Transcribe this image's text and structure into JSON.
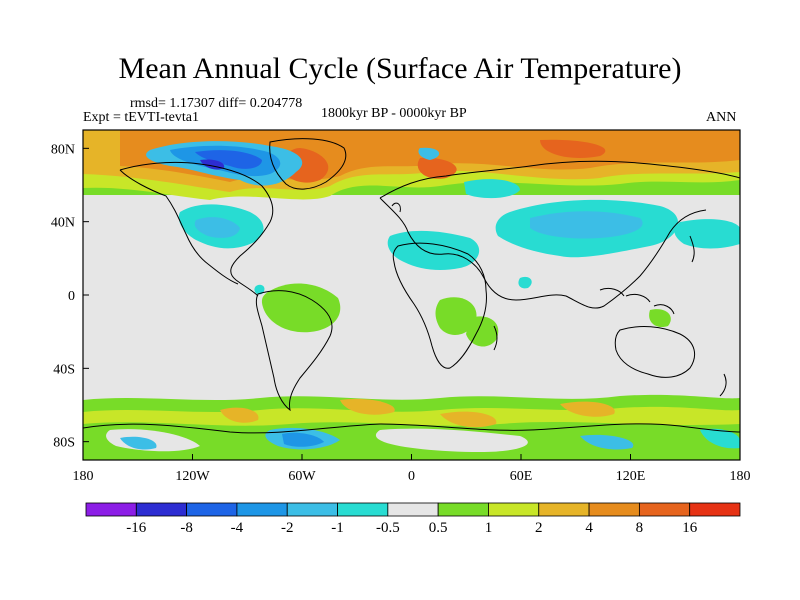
{
  "title": "Mean Annual Cycle (Surface Air Temperature)",
  "stats": "rmsd= 1.17307 diff= 0.204778",
  "experiment": "Expt = tEVTI-tevta1",
  "period": "1800kyr BP - 0000kyr BP",
  "season": "ANN",
  "x_ticks": [
    "180",
    "120W",
    "60W",
    "0",
    "60E",
    "120E",
    "180"
  ],
  "y_ticks": [
    "80N",
    "40N",
    "0",
    "40S",
    "80S"
  ],
  "colorbar": {
    "labels": [
      "-16",
      "-8",
      "-4",
      "-2",
      "-1",
      "-0.5",
      "0.5",
      "1",
      "2",
      "4",
      "8",
      "16"
    ],
    "colors": [
      "#8c1ee6",
      "#2d2dd2",
      "#1e64e6",
      "#1e96e6",
      "#3cbee6",
      "#28dcd2",
      "#e6e6e6",
      "#78dc28",
      "#c8e628",
      "#e6b428",
      "#e68c1e",
      "#e6641e",
      "#e63214"
    ]
  },
  "map": {
    "background": "#e6e6e6",
    "coastline_color": "#000000"
  }
}
